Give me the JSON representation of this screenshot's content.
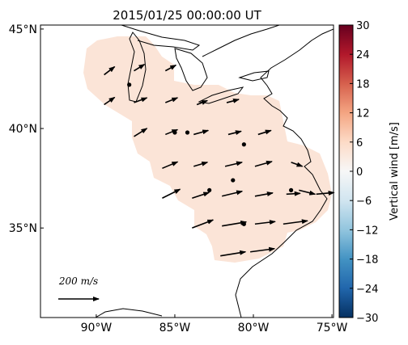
{
  "chart_data": {
    "type": "vector",
    "title": "2015/01/25 00:00:00 UT",
    "xlim": [
      -93.55,
      -74.9
    ],
    "ylim": [
      30.5,
      45.2
    ],
    "xticks": [
      {
        "value": -90,
        "label": "90°W"
      },
      {
        "value": -85,
        "label": "85°W"
      },
      {
        "value": -80,
        "label": "80°W"
      },
      {
        "value": -75,
        "label": "75°W"
      }
    ],
    "yticks": [
      {
        "value": 35,
        "label": "35°N"
      },
      {
        "value": 40,
        "label": "40°N"
      },
      {
        "value": 45,
        "label": "45°N"
      }
    ],
    "region_value": 4,
    "colorbar": {
      "label": "Vertical wind [m/s]",
      "lim": [
        -30,
        30
      ],
      "ticks": [
        30,
        24,
        18,
        12,
        6,
        0,
        {
          "value": -6,
          "label": "−6"
        },
        {
          "value": -12,
          "label": "−12"
        },
        {
          "value": -18,
          "label": "−18"
        },
        {
          "value": -24,
          "label": "−24"
        },
        {
          "value": -30,
          "label": "−30"
        }
      ]
    },
    "scale": {
      "value": 200,
      "label": "200 m/s"
    },
    "stations": [
      {
        "lon": -87.9,
        "lat": 42.2
      },
      {
        "lon": -85.0,
        "lat": 39.8
      },
      {
        "lon": -84.2,
        "lat": 39.8
      },
      {
        "lon": -80.6,
        "lat": 39.2
      },
      {
        "lon": -81.3,
        "lat": 37.4
      },
      {
        "lon": -82.8,
        "lat": 36.9
      },
      {
        "lon": -77.6,
        "lat": 36.9
      },
      {
        "lon": -80.6,
        "lat": 35.2
      }
    ],
    "vectors": [
      {
        "lon": -89.5,
        "lat": 42.7,
        "u": 52,
        "v": 40
      },
      {
        "lon": -87.6,
        "lat": 42.9,
        "u": 52,
        "v": 32
      },
      {
        "lon": -85.6,
        "lat": 42.9,
        "u": 52,
        "v": 28
      },
      {
        "lon": -89.5,
        "lat": 41.2,
        "u": 52,
        "v": 36
      },
      {
        "lon": -87.6,
        "lat": 41.3,
        "u": 64,
        "v": 24
      },
      {
        "lon": -85.6,
        "lat": 41.3,
        "u": 60,
        "v": 24
      },
      {
        "lon": -83.6,
        "lat": 41.2,
        "u": 52,
        "v": 20
      },
      {
        "lon": -81.7,
        "lat": 41.3,
        "u": 60,
        "v": 16
      },
      {
        "lon": -87.6,
        "lat": 39.6,
        "u": 64,
        "v": 40
      },
      {
        "lon": -85.6,
        "lat": 39.7,
        "u": 60,
        "v": 24
      },
      {
        "lon": -83.8,
        "lat": 39.7,
        "u": 72,
        "v": 20
      },
      {
        "lon": -81.6,
        "lat": 39.7,
        "u": 64,
        "v": 16
      },
      {
        "lon": -79.7,
        "lat": 39.7,
        "u": 64,
        "v": 20
      },
      {
        "lon": -85.8,
        "lat": 38.0,
        "u": 76,
        "v": 32
      },
      {
        "lon": -83.8,
        "lat": 38.1,
        "u": 68,
        "v": 20
      },
      {
        "lon": -81.8,
        "lat": 38.1,
        "u": 84,
        "v": 20
      },
      {
        "lon": -79.9,
        "lat": 38.1,
        "u": 84,
        "v": 24
      },
      {
        "lon": -77.6,
        "lat": 38.3,
        "u": 56,
        "v": -20
      },
      {
        "lon": -85.8,
        "lat": 36.5,
        "u": 88,
        "v": 44
      },
      {
        "lon": -83.9,
        "lat": 36.5,
        "u": 84,
        "v": 28
      },
      {
        "lon": -82.0,
        "lat": 36.6,
        "u": 100,
        "v": 24
      },
      {
        "lon": -79.9,
        "lat": 36.6,
        "u": 88,
        "v": 16
      },
      {
        "lon": -77.9,
        "lat": 36.7,
        "u": 68,
        "v": 4
      },
      {
        "lon": -77.1,
        "lat": 36.9,
        "u": 80,
        "v": -20
      },
      {
        "lon": -76.0,
        "lat": 36.7,
        "u": 88,
        "v": 8
      },
      {
        "lon": -83.9,
        "lat": 35.0,
        "u": 104,
        "v": 40
      },
      {
        "lon": -82.0,
        "lat": 35.1,
        "u": 120,
        "v": 20
      },
      {
        "lon": -79.9,
        "lat": 35.2,
        "u": 100,
        "v": 12
      },
      {
        "lon": -78.1,
        "lat": 35.2,
        "u": 120,
        "v": 16
      },
      {
        "lon": -82.1,
        "lat": 33.6,
        "u": 124,
        "v": 20
      },
      {
        "lon": -80.2,
        "lat": 33.8,
        "u": 120,
        "v": 16
      }
    ]
  }
}
